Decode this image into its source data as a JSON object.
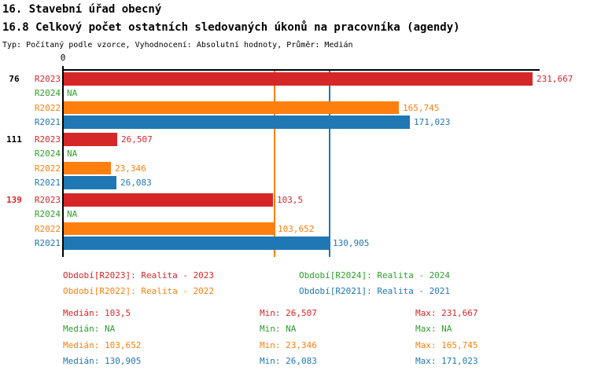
{
  "header": {
    "title1": "16. Stavební úřad obecný",
    "title2": "16.8 Celkový počet ostatních sledovaných úkonů na pracovníka (agendy)",
    "subtitle": "Typ: Počítaný podle vzorce, Vyhodnocení: Absolutní hodnoty, Průměr: Medián"
  },
  "colors": {
    "R2023": "#d62728",
    "R2024": "#2ca02c",
    "R2022": "#ff7f0e",
    "R2021": "#1f77b4",
    "axis": "#000000",
    "black": "#000000"
  },
  "chart_data": {
    "type": "bar",
    "orientation": "horizontal",
    "axis_zero_label": "0",
    "xlim": [
      0,
      235
    ],
    "series_order": [
      "R2023",
      "R2024",
      "R2022",
      "R2021"
    ],
    "groups": [
      {
        "label": "76",
        "label_color": "#000000",
        "bars": [
          {
            "series": "R2023",
            "value": 231.667,
            "display": "231,667"
          },
          {
            "series": "R2024",
            "value": null,
            "display": "NA"
          },
          {
            "series": "R2022",
            "value": 165.745,
            "display": "165,745"
          },
          {
            "series": "R2021",
            "value": 171.023,
            "display": "171,023"
          }
        ]
      },
      {
        "label": "111",
        "label_color": "#000000",
        "bars": [
          {
            "series": "R2023",
            "value": 26.507,
            "display": "26,507"
          },
          {
            "series": "R2024",
            "value": null,
            "display": "NA"
          },
          {
            "series": "R2022",
            "value": 23.346,
            "display": "23,346"
          },
          {
            "series": "R2021",
            "value": 26.083,
            "display": "26,083"
          }
        ]
      },
      {
        "label": "139",
        "label_color": "#d62728",
        "bars": [
          {
            "series": "R2023",
            "value": 103.5,
            "display": "103,5"
          },
          {
            "series": "R2024",
            "value": null,
            "display": "NA"
          },
          {
            "series": "R2022",
            "value": 103.652,
            "display": "103,652"
          },
          {
            "series": "R2021",
            "value": 130.905,
            "display": "130,905"
          }
        ]
      }
    ],
    "reference_lines": [
      {
        "series": "R2022",
        "value": 103.652,
        "color": "#ff7f0e"
      },
      {
        "series": "R2021",
        "value": 130.905,
        "color": "#1f77b4"
      }
    ]
  },
  "legend": [
    {
      "label": "Období[R2023]: Realita - 2023",
      "color": "#d62728"
    },
    {
      "label": "Období[R2024]: Realita - 2024",
      "color": "#2ca02c"
    },
    {
      "label": "Období[R2022]: Realita - 2022",
      "color": "#ff7f0e"
    },
    {
      "label": "Období[R2021]: Realita - 2021",
      "color": "#1f77b4"
    }
  ],
  "stats": [
    {
      "color": "#d62728",
      "median": "Medián: 103,5",
      "min": "Min: 26,507",
      "max": "Max: 231,667"
    },
    {
      "color": "#2ca02c",
      "median": "Medián: NA",
      "min": "Min: NA",
      "max": "Max: NA"
    },
    {
      "color": "#ff7f0e",
      "median": "Medián: 103,652",
      "min": "Min: 23,346",
      "max": "Max: 165,745"
    },
    {
      "color": "#1f77b4",
      "median": "Medián: 130,905",
      "min": "Min: 26,083",
      "max": "Max: 171,023"
    }
  ]
}
